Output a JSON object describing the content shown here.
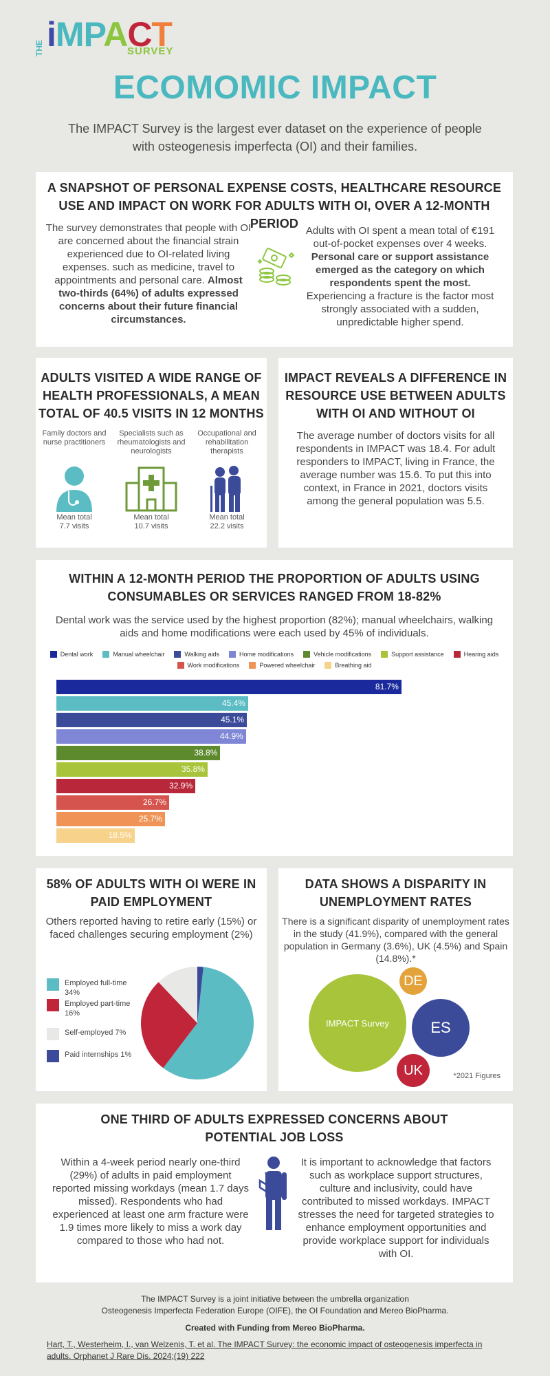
{
  "logo": {
    "the": "THE",
    "word_i": "i",
    "word_m": "M",
    "word_p": "P",
    "word_a": "A",
    "word_c": "C",
    "word_t": "T",
    "survey": "SURVEY"
  },
  "title": "ECOMOMIC IMPACT",
  "intro": "The IMPACT Survey is the largest ever dataset on the experience of people with osteogenesis imperfecta (OI) and their families.",
  "snapshot": {
    "heading": "A SNAPSHOT OF PERSONAL EXPENSE COSTS, HEALTHCARE RESOURCE USE AND IMPACT ON WORK FOR ADULTS WITH OI, OVER A 12-MONTH PERIOD",
    "left_text": "The survey demonstrates that people with OI are concerned about the financial strain experienced due to OI-related living expenses. such as medicine, travel to appointments and personal care.",
    "left_bold": "Almost two-thirds (64%) of adults expressed concerns about their future financial circumstances.",
    "right_text1": "Adults with OI spent a mean total of €191 out-of-pocket expenses over 4 weeks.",
    "right_bold": "Personal care or support assistance emerged as the category on which respondents spent the most.",
    "right_text2": "Experiencing a fracture is the factor most strongly associated with a sudden, unpredictable higher spend."
  },
  "visits": {
    "heading": "ADULTS VISITED A WIDE RANGE OF HEALTH PROFESSIONALS, A MEAN TOTAL OF 40.5 VISITS IN 12 MONTHS",
    "items": [
      {
        "label": "Family doctors and nurse practitioners",
        "mean": "Mean total",
        "value": "7.7 visits"
      },
      {
        "label": "Specialists such as rheumatologists and neurologists",
        "mean": "Mean total",
        "value": "10.7 visits"
      },
      {
        "label": "Occupational and rehabilitation therapists",
        "mean": "Mean total",
        "value": "22.2 visits"
      }
    ]
  },
  "resource": {
    "heading": "IMPACT REVEALS A DIFFERENCE IN RESOURCE USE BETWEEN ADULTS WITH OI AND WITHOUT OI",
    "text": "The average number of doctors visits for all respondents in IMPACT was 18.4. For adult responders to IMPACT, living in France, the average number was 15.6. To put this into context, in France in 2021, doctors visits among the general population was 5.5."
  },
  "consumables": {
    "heading": "WITHIN A 12-MONTH PERIOD THE PROPORTION OF ADULTS USING CONSUMABLES OR SERVICES RANGED FROM 18-82%",
    "text": "Dental work was the service used by the highest proportion (82%); manual wheelchairs, walking aids and home modifications were each used by 45% of individuals."
  },
  "chart_data": [
    {
      "type": "bar",
      "orientation": "horizontal",
      "categories": [
        "Dental work",
        "Manual wheelchair",
        "Walking aids",
        "Home modifications",
        "Vehicle modifications",
        "Support assistance",
        "Hearing aids",
        "Work modifications",
        "Powered wheelchair",
        "Breathing aid"
      ],
      "values": [
        81.7,
        45.4,
        45.1,
        44.9,
        38.8,
        35.8,
        32.9,
        26.7,
        25.7,
        18.5
      ],
      "labels": [
        "81.7%",
        "45.4%",
        "45.1%",
        "44.9%",
        "38.8%",
        "35.8%",
        "32.9%",
        "26.7%",
        "25.7%",
        "18.5%"
      ],
      "colors": [
        "#1a2a9c",
        "#5bbcc4",
        "#3b4b9a",
        "#7f86d6",
        "#5e8a2e",
        "#a8c43a",
        "#b8283a",
        "#d5554e",
        "#ef9456",
        "#f6d28a"
      ],
      "xlim": [
        0,
        100
      ],
      "legend": "top"
    },
    {
      "type": "pie",
      "categories": [
        "Employed full-time 34%",
        "Employed part-time 16%",
        "Self-employed 7%",
        "Paid internships 1%"
      ],
      "values": [
        34,
        16,
        7,
        1
      ],
      "colors": [
        "#5bbcc4",
        "#c0253a",
        "#e8e8e6",
        "#3b4b9a"
      ]
    }
  ],
  "employment": {
    "heading": "58% OF ADULTS WITH OI WERE IN PAID EMPLOYMENT",
    "text": "Others reported having to retire early (15%) or faced challenges securing employment (2%)"
  },
  "disparity": {
    "heading": "DATA SHOWS A DISPARITY IN UNEMPLOYMENT RATES",
    "text": "There is a significant disparity of unemployment rates in the study (41.9%), compared with the general population in Germany (3.6%), UK (4.5%) and Spain (14.8%).*",
    "bubbles": [
      {
        "label": "IMPACT Survey",
        "value": 41.9,
        "color": "#a8c43a"
      },
      {
        "label": "DE",
        "value": 3.6,
        "color": "#e4a23a"
      },
      {
        "label": "ES",
        "value": 14.8,
        "color": "#3b4b9a"
      },
      {
        "label": "UK",
        "value": 4.5,
        "color": "#c0253a"
      }
    ],
    "note": "*2021 Figures"
  },
  "jobloss": {
    "heading": "ONE THIRD OF ADULTS EXPRESSED CONCERNS ABOUT POTENTIAL JOB LOSS",
    "left": "Within a 4-week period nearly one-third (29%) of adults in paid employment reported missing workdays (mean 1.7 days missed). Respondents who had experienced at least one arm fracture were 1.9 times more likely to miss a work day compared to those who had not.",
    "right": "It is important to acknowledge that factors such as workplace support structures, culture and inclusivity, could have contributed to missed workdays. IMPACT stresses the need for targeted strategies to enhance employment opportunities and provide workplace support for individuals with OI."
  },
  "footer": {
    "line1": "The IMPACT Survey is a joint initiative between the umbrella organization",
    "line2": "Osteogenesis Imperfecta Federation Europe (OIFE), the OI Foundation and Mereo BioPharma.",
    "funding": "Created with Funding from Mereo BioPharma.",
    "citation1": "Hart, T., Westerheim, I., van Welzenis, T. et al. The IMPACT Survey: the economic impact of osteogenesis imperfecta in",
    "citation2": "adults. Orphanet J Rare Dis. 2024;(19) 222"
  }
}
